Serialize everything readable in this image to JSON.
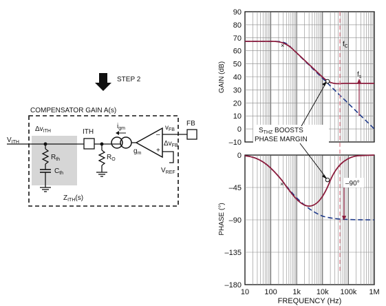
{
  "schematic": {
    "step_label": "STEP 2",
    "box_title": "COMPENSATOR GAIN A(s)",
    "vith": "V",
    "vith_sub": "ITH",
    "delta_vith": "Δv",
    "delta_vith_sub": "ITH",
    "ith_pin": "ITH",
    "igm": "i",
    "igm_sub": "gm",
    "rth": "R",
    "rth_sub": "th",
    "cth": "C",
    "cth_sub": "th",
    "ro": "R",
    "ro_sub": "O",
    "gm": "g",
    "gm_sub": "m",
    "vfb": "v",
    "vfb_sub": "FB",
    "delta_vfb": "Δv",
    "delta_vfb_sub": "FB",
    "fb_pin": "FB",
    "vref": "V",
    "vref_sub": "REF",
    "zith": "Z",
    "zith_sub": "ITH",
    "zith_suffix": "(s)",
    "minus_sign": "–",
    "plus_sign": "+"
  },
  "gain_plot": {
    "ylabel": "GAIN (dB)",
    "yticks": [
      "90",
      "80",
      "70",
      "60",
      "50",
      "40",
      "30",
      "20",
      "10",
      "0",
      "–10"
    ],
    "fc_label": "f",
    "fc_sub": "C",
    "fs_label": "f",
    "fs_sub": "s"
  },
  "phase_plot": {
    "ylabel": "PHASE (°)",
    "yticks": [
      "0",
      "–45",
      "–90",
      "–135",
      "–180"
    ],
    "annotation": "–90°"
  },
  "xaxis": {
    "label": "FREQUENCY (Hz)",
    "ticks": [
      "10",
      "100",
      "1k",
      "10k",
      "100k",
      "1M"
    ]
  },
  "callout": {
    "line1_pre": "S",
    "line1_sub": "THZ",
    "line1_post": " BOOSTS",
    "line2": "PHASE MARGIN"
  },
  "colors": {
    "boosted_curve": "#8c1c3c",
    "uncompensated_curve": "#1f3a8a",
    "marker_line": "#e07b8a",
    "shading": "#d6d6d6"
  }
}
